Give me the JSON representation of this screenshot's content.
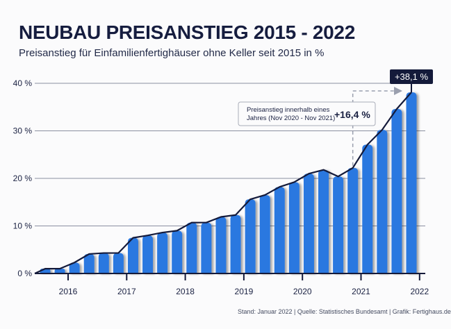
{
  "header": {
    "title": "NEUBAU PREISANSTIEG 2015 - 2022",
    "subtitle": "Preisanstieg für Einfamilienfertighäuser ohne Keller seit 2015 in %"
  },
  "footer": "Stand: Januar 2022 | Quelle: Statistisches Bundesamt | Grafik: Fertighaus.de",
  "chart_data": {
    "type": "bar",
    "title": "NEUBAU PREISANSTIEG 2015 - 2022",
    "subtitle": "Preisanstieg für Einfamilienfertighäuser ohne Keller seit 2015 in %",
    "ylim": [
      0,
      40
    ],
    "yticks": [
      "0 %",
      "10 %",
      "20 %",
      "30 %",
      "40 %"
    ],
    "ytick_values": [
      0,
      10,
      20,
      30,
      40
    ],
    "xticks": [
      "2016",
      "2017",
      "2018",
      "2019",
      "2020",
      "2021",
      "2022"
    ],
    "grid": true,
    "line_overlay": true,
    "bar_color": "#2a78e0",
    "line_color": "#141a3a",
    "values": [
      1.0,
      1.0,
      2.3,
      4.1,
      4.3,
      4.3,
      7.5,
      8.0,
      8.6,
      9.0,
      10.7,
      10.7,
      11.9,
      12.3,
      15.6,
      16.5,
      18.2,
      19.2,
      21.0,
      21.8,
      20.4,
      22.2,
      27.1,
      30.2,
      34.6,
      38.1
    ],
    "annotations": {
      "final_label": "+38,1 %",
      "yearly_text_1": "Preisanstieg innerhalb eines",
      "yearly_text_2": "Jahres (Nov 2020 - Nov 2021)",
      "yearly_value": "+16,4 %"
    }
  }
}
